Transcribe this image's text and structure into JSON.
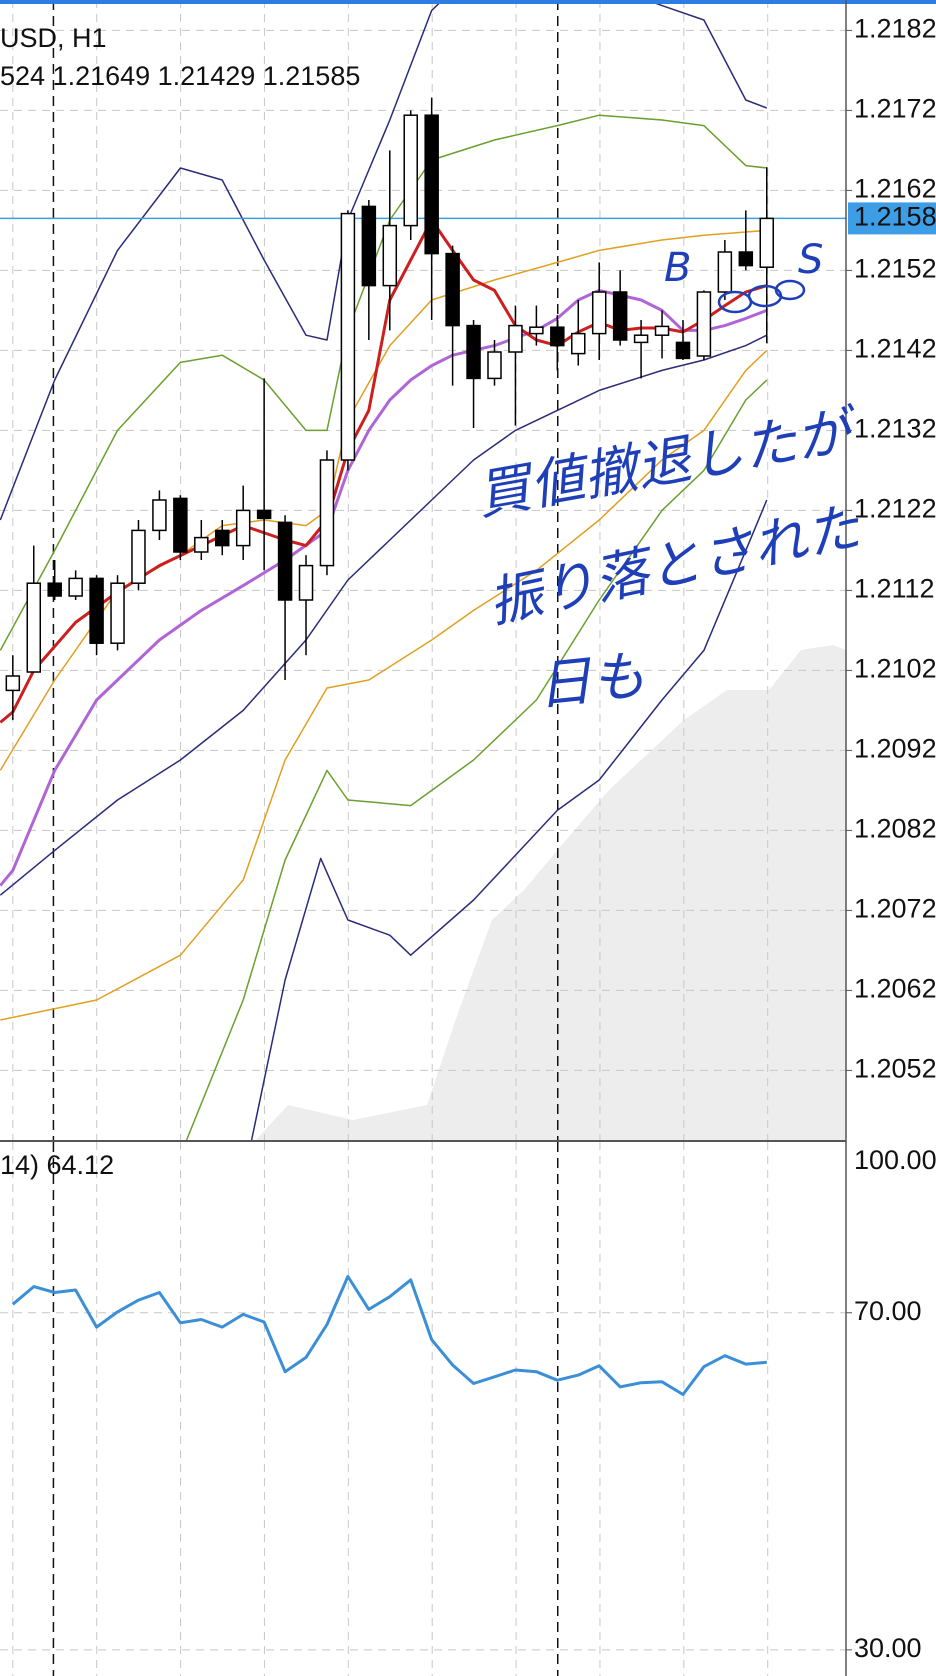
{
  "header": {
    "symbol": "USD, H1",
    "ohlc": "524 1.21649 1.21429 1.21585"
  },
  "chart_data": [
    {
      "type": "candlestick",
      "ylim": [
        1.20433,
        1.21858
      ],
      "yticks": [
        1.2182,
        1.2172,
        1.2162,
        1.2152,
        1.2142,
        1.2132,
        1.2122,
        1.2112,
        1.2102,
        1.2092,
        1.2082,
        1.2072,
        1.2062,
        1.2052
      ],
      "grid": true,
      "up_color": "#ffffff",
      "down_color": "#000000",
      "open": [
        1.20995,
        1.21018,
        1.21129,
        1.21113,
        1.21135,
        1.21054,
        1.21129,
        1.21195,
        1.21235,
        1.21168,
        1.21195,
        1.21176,
        1.2122,
        1.21205,
        1.21108,
        1.21151,
        1.21283,
        1.216,
        1.21501,
        1.21576,
        1.21714,
        1.21541,
        1.21451,
        1.21385,
        1.21418,
        1.21441,
        1.21449,
        1.21416,
        1.21441,
        1.21493,
        1.2143,
        1.21439,
        1.2143,
        1.21413,
        1.21493,
        1.21543,
        1.21524
      ],
      "high": [
        1.21039,
        1.21176,
        1.21158,
        1.21145,
        1.21139,
        1.21139,
        1.21208,
        1.21245,
        1.21239,
        1.21208,
        1.21208,
        1.21251,
        1.21385,
        1.21214,
        1.21164,
        1.21295,
        1.21595,
        1.21608,
        1.2167,
        1.2172,
        1.21736,
        1.21551,
        1.21458,
        1.21433,
        1.21476,
        1.21476,
        1.21464,
        1.21483,
        1.2153,
        1.2152,
        1.21458,
        1.2147,
        1.21458,
        1.21495,
        1.21558,
        1.21595,
        1.21649
      ],
      "low": [
        1.20958,
        1.21018,
        1.21108,
        1.21108,
        1.21039,
        1.21045,
        1.2112,
        1.21183,
        1.21158,
        1.21158,
        1.21164,
        1.21158,
        1.21145,
        1.21008,
        1.21039,
        1.21139,
        1.2127,
        1.21433,
        1.21445,
        1.21558,
        1.21458,
        1.21376,
        1.21323,
        1.21376,
        1.21326,
        1.21426,
        1.21395,
        1.21401,
        1.21408,
        1.21426,
        1.21385,
        1.2141,
        1.21408,
        1.21408,
        1.21483,
        1.2152,
        1.21429
      ],
      "close": [
        1.21013,
        1.21129,
        1.21113,
        1.21135,
        1.21054,
        1.21129,
        1.21195,
        1.21233,
        1.21168,
        1.21186,
        1.21176,
        1.2122,
        1.2121,
        1.21108,
        1.21151,
        1.21283,
        1.21591,
        1.21501,
        1.21576,
        1.21714,
        1.21541,
        1.21451,
        1.21385,
        1.21418,
        1.21451,
        1.21449,
        1.21426,
        1.21441,
        1.21493,
        1.21433,
        1.21439,
        1.2145,
        1.2141,
        1.21493,
        1.21543,
        1.21526,
        1.21585
      ],
      "current_price": 1.21585,
      "current_price_color": "#3d9ee6",
      "lines": [
        {
          "color": "#2a2c78",
          "width": 1.5,
          "x": [
            -0.6,
            2,
            5,
            8,
            10,
            12,
            14,
            15,
            16,
            18,
            20,
            21,
            26,
            31,
            33,
            35,
            36
          ],
          "values": [
            1.21208,
            1.21383,
            1.21545,
            1.21648,
            1.21633,
            1.21533,
            1.21439,
            1.21433,
            1.21583,
            1.21708,
            1.21845,
            1.2187,
            1.219,
            1.21851,
            1.21833,
            1.21733,
            1.21723
          ]
        },
        {
          "color": "#6aa02e",
          "width": 1.5,
          "x": [
            -0.6,
            2,
            5,
            8,
            10,
            12,
            14,
            15,
            16,
            18,
            20,
            23,
            26,
            28,
            31,
            33,
            35,
            36
          ],
          "values": [
            1.21045,
            1.2117,
            1.2132,
            1.21405,
            1.21414,
            1.21383,
            1.2132,
            1.2132,
            1.21445,
            1.21583,
            1.21658,
            1.21683,
            1.21701,
            1.21714,
            1.21708,
            1.21701,
            1.21651,
            1.21648
          ]
        },
        {
          "color": "#e0a020",
          "width": 1.5,
          "x": [
            -0.6,
            2,
            5,
            8,
            10,
            12,
            14,
            15,
            16,
            18,
            20,
            23,
            26,
            28,
            31,
            33,
            35,
            36
          ],
          "values": [
            1.20895,
            1.21008,
            1.2112,
            1.21164,
            1.21201,
            1.21208,
            1.21201,
            1.2122,
            1.21333,
            1.21426,
            1.21483,
            1.21508,
            1.2153,
            1.21545,
            1.21558,
            1.21564,
            1.21568,
            1.2157
          ]
        },
        {
          "color": "#2a2c78",
          "width": 1.5,
          "x": [
            -0.6,
            2,
            5,
            8,
            11,
            14,
            16,
            18,
            20,
            22,
            24,
            26,
            28,
            31,
            33,
            35,
            36
          ],
          "values": [
            1.20739,
            1.20795,
            1.20858,
            1.20908,
            1.2097,
            1.21058,
            1.21133,
            1.21183,
            1.21233,
            1.21283,
            1.2132,
            1.21345,
            1.2137,
            1.21395,
            1.21408,
            1.21426,
            1.21439
          ]
        },
        {
          "color": "#e0a020",
          "width": 1.5,
          "x": [
            -0.6,
            4,
            8,
            11,
            13,
            15,
            17,
            20,
            22,
            25,
            28,
            31,
            33,
            35,
            36
          ],
          "values": [
            1.20583,
            1.20608,
            1.20664,
            1.20758,
            1.20908,
            1.20998,
            1.21008,
            1.21058,
            1.21095,
            1.21145,
            1.21208,
            1.21283,
            1.2132,
            1.21395,
            1.2142
          ]
        },
        {
          "color": "#6aa02e",
          "width": 1.5,
          "x": [
            8.3,
            11,
            13,
            15,
            16,
            19,
            22,
            25,
            28,
            31,
            33,
            35,
            36
          ],
          "values": [
            1.20433,
            1.20608,
            1.20783,
            1.20895,
            1.20858,
            1.20851,
            1.20908,
            1.20983,
            1.21108,
            1.2122,
            1.2127,
            1.21358,
            1.21383
          ]
        },
        {
          "color": "#2a2c78",
          "width": 1.5,
          "x": [
            11.4,
            13,
            14.7,
            16,
            18,
            19,
            22,
            26,
            28,
            31,
            33,
            35,
            36
          ],
          "values": [
            1.20433,
            1.20633,
            1.20785,
            1.20708,
            1.20689,
            1.20664,
            1.20733,
            1.20845,
            1.20883,
            1.20983,
            1.21045,
            1.2117,
            1.21233
          ]
        },
        {
          "color": "#b065d6",
          "width": 3,
          "x": [
            -0.6,
            0,
            2,
            4,
            7,
            9,
            11,
            13,
            15,
            16,
            17,
            18,
            19,
            20,
            21,
            23,
            25,
            26,
            27,
            28,
            29,
            30,
            31,
            32,
            33,
            34,
            35,
            36
          ],
          "values": [
            1.20751,
            1.2077,
            1.20895,
            1.20983,
            1.21058,
            1.21095,
            1.21126,
            1.21158,
            1.21195,
            1.2127,
            1.2132,
            1.21358,
            1.21383,
            1.21401,
            1.21414,
            1.21426,
            1.21445,
            1.2146,
            1.21483,
            1.21495,
            1.21489,
            1.21483,
            1.2147,
            1.21445,
            1.21445,
            1.21451,
            1.2146,
            1.2147
          ]
        },
        {
          "color": "#cc1f1f",
          "width": 3,
          "x": [
            -0.6,
            0,
            1,
            3,
            5,
            7,
            9,
            11,
            13,
            14,
            15,
            16,
            17,
            18,
            19,
            20,
            21,
            22,
            23,
            24,
            25,
            26,
            27,
            28,
            29,
            30,
            31,
            32,
            33,
            34,
            35,
            36
          ],
          "values": [
            1.20955,
            1.20968,
            1.2102,
            1.2108,
            1.21118,
            1.21151,
            1.21176,
            1.21201,
            1.21183,
            1.21176,
            1.21208,
            1.21295,
            1.21345,
            1.21483,
            1.21533,
            1.21583,
            1.21545,
            1.21508,
            1.21495,
            1.21451,
            1.21433,
            1.21426,
            1.21443,
            1.21455,
            1.21445,
            1.21448,
            1.21448,
            1.21443,
            1.21458,
            1.21476,
            1.21493,
            1.21501
          ]
        }
      ]
    },
    {
      "type": "line",
      "title": "14) 64.12",
      "color": "#3a8fd6",
      "max_label": "100.00",
      "values": [
        71.0,
        73.1,
        72.4,
        72.7,
        68.3,
        70.1,
        71.5,
        72.4,
        68.8,
        69.2,
        68.3,
        69.8,
        68.9,
        63.0,
        64.7,
        68.6,
        74.3,
        70.4,
        71.9,
        73.9,
        66.8,
        63.8,
        61.6,
        62.4,
        63.2,
        63.0,
        62.0,
        62.6,
        63.7,
        61.2,
        61.7,
        61.8,
        60.3,
        63.6,
        64.9,
        63.9,
        64.12
      ],
      "ylim": [
        26.9,
        89.9
      ],
      "yticks": [
        {
          "value": 70,
          "label": "70.00"
        },
        {
          "value": 30,
          "label": "30.00"
        }
      ],
      "grid": true
    }
  ],
  "annotations": {
    "b": "B",
    "s": "S",
    "note": [
      "買値撤退したが",
      "振り落とされた",
      "日も"
    ]
  }
}
